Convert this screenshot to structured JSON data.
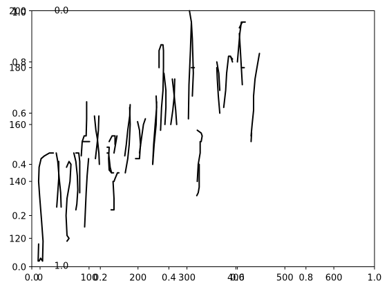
{
  "chart_data": [
    {
      "type": "line",
      "title": "",
      "xlabel": "",
      "ylabel": "",
      "xlim": [
        0,
        1
      ],
      "ylim": [
        0,
        1
      ],
      "x_ticks": [
        "0.0",
        "0.2",
        "0.4",
        "0.6",
        "0.8",
        "1.0"
      ],
      "y_ticks": [
        "0.0",
        "0.2",
        "0.4",
        "0.6",
        "0.8",
        "1.0"
      ],
      "top_tick_labels": [
        "0.0",
        "1.0"
      ],
      "grid": false,
      "legend": "none"
    },
    {
      "type": "line",
      "title": "",
      "xlabel": "",
      "ylabel": "",
      "x_range": [
        0,
        700
      ],
      "ylim": [
        110,
        200
      ],
      "x_ticks": [
        "0",
        "100",
        "200",
        "300",
        "400",
        "500",
        "600"
      ],
      "y_ticks": [
        "120",
        "140",
        "160",
        "180",
        "200"
      ],
      "grid": false,
      "legend": "none",
      "series": [
        {
          "color": "#000000",
          "description_free_strokes": true,
          "strokes": [
            [
              [
                15,
                112
              ],
              [
                18,
                113
              ],
              [
                22,
                112
              ],
              [
                23,
                119
              ],
              [
                20,
                126
              ],
              [
                16,
                135
              ],
              [
                14,
                140
              ],
              [
                15,
                145
              ],
              [
                19,
                148
              ],
              [
                26,
                149
              ],
              [
                36,
                150
              ],
              [
                44,
                150
              ]
            ],
            [
              [
                13,
                112
              ],
              [
                14,
                118
              ]
            ],
            [
              [
                50,
                150
              ],
              [
                53,
                147
              ],
              [
                56,
                141
              ],
              [
                59,
                136
              ],
              [
                60,
                131
              ]
            ],
            [
              [
                55,
                147
              ],
              [
                55,
                141
              ],
              [
                53,
                136
              ],
              [
                51,
                131
              ]
            ],
            [
              [
                71,
                145
              ],
              [
                76,
                147
              ],
              [
                80,
                146
              ],
              [
                78,
                140
              ],
              [
                72,
                134
              ],
              [
                70,
                128
              ],
              [
                72,
                121
              ],
              [
                76,
                120
              ],
              [
                72,
                119
              ]
            ],
            [
              [
                86,
                150
              ],
              [
                90,
                147
              ],
              [
                93,
                142
              ],
              [
                94,
                137
              ],
              [
                92,
                132
              ],
              [
                90,
                130
              ]
            ],
            [
              [
                90,
                150
              ],
              [
                96,
                150
              ],
              [
                98,
                147
              ],
              [
                98,
                136
              ]
            ],
            [
              [
                101,
                149
              ],
              [
                103,
                154
              ],
              [
                107,
                156
              ],
              [
                111,
                156
              ],
              [
                112,
                162
              ],
              [
                112,
                168
              ]
            ],
            [
              [
                105,
                154
              ],
              [
                110,
                154
              ],
              [
                113,
                154
              ],
              [
                118,
                154
              ]
            ],
            [
              [
                116,
                148
              ],
              [
                113,
                142
              ],
              [
                111,
                136
              ],
              [
                108,
                124
              ]
            ],
            [
              [
                128,
                163
              ],
              [
                131,
                158
              ],
              [
                134,
                155
              ],
              [
                137,
                150
              ],
              [
                138,
                146
              ]
            ],
            [
              [
                137,
                163
              ],
              [
                136,
                158
              ],
              [
                134,
                154
              ],
              [
                130,
                148
              ]
            ],
            [
              [
                154,
                152
              ],
              [
                158,
                152
              ],
              [
                157,
                148
              ],
              [
                158,
                144
              ],
              [
                163,
                143
              ],
              [
                167,
                143
              ]
            ],
            [
              [
                154,
                150
              ],
              [
                157,
                150
              ],
              [
                160,
                145
              ],
              [
                163,
                143
              ]
            ],
            [
              [
                158,
                154
              ],
              [
                164,
                156
              ],
              [
                170,
                156
              ],
              [
                170,
                153
              ]
            ],
            [
              [
                168,
                150
              ],
              [
                174,
                156
              ]
            ],
            [
              [
                166,
                140
              ],
              [
                168,
                134
              ],
              [
                168,
                130
              ],
              [
                162,
                130
              ]
            ],
            [
              [
                168,
                140
              ],
              [
                170,
                141
              ],
              [
                175,
                143
              ],
              [
                178,
                143
              ]
            ],
            [
              [
                190,
                149
              ],
              [
                193,
                153
              ],
              [
                196,
                158
              ],
              [
                200,
                163
              ],
              [
                201,
                167
              ]
            ],
            [
              [
                200,
                166
              ],
              [
                201,
                160
              ],
              [
                199,
                153
              ],
              [
                196,
                148
              ],
              [
                191,
                143
              ]
            ],
            [
              [
                212,
                148
              ],
              [
                220,
                148
              ],
              [
                222,
                153
              ],
              [
                220,
                158
              ],
              [
                216,
                161
              ]
            ],
            [
              [
                220,
                150
              ],
              [
                224,
                155
              ],
              [
                228,
                160
              ],
              [
                232,
                162
              ]
            ],
            [
              [
                247,
                146
              ],
              [
                249,
                153
              ],
              [
                252,
                160
              ],
              [
                255,
                166
              ],
              [
                254,
                170
              ]
            ],
            [
              [
                255,
                168
              ],
              [
                254,
                160
              ],
              [
                250,
                153
              ],
              [
                247,
                146
              ]
            ],
            [
              [
                263,
                158
              ],
              [
                265,
                166
              ],
              [
                268,
                172
              ],
              [
                269,
                180
              ],
              [
                269,
                186
              ],
              [
                268,
                188
              ],
              [
                264,
                188
              ]
            ],
            [
              [
                260,
                180
              ],
              [
                260,
                186
              ],
              [
                264,
                188
              ]
            ],
            [
              [
                272,
                160
              ],
              [
                274,
                166
              ],
              [
                274,
                172
              ],
              [
                270,
                178
              ]
            ],
            [
              [
                292,
                176
              ],
              [
                291,
                170
              ],
              [
                288,
                165
              ],
              [
                284,
                160
              ]
            ],
            [
              [
                287,
                176
              ],
              [
                291,
                170
              ],
              [
                294,
                165
              ],
              [
                296,
                160
              ]
            ],
            [
              [
                322,
                200
              ],
              [
                326,
                196
              ],
              [
                328,
                190
              ],
              [
                330,
                178
              ],
              [
                328,
                170
              ]
            ],
            [
              [
                326,
                196
              ],
              [
                324,
                186
              ],
              [
                321,
                174
              ],
              [
                320,
                162
              ]
            ],
            [
              [
                326,
                180
              ],
              [
                332,
                180
              ]
            ],
            [
              [
                342,
                146
              ],
              [
                342,
                138
              ],
              [
                340,
                136
              ],
              [
                337,
                135
              ]
            ],
            [
              [
                344,
                154
              ],
              [
                344,
                150
              ],
              [
                340,
                146
              ],
              [
                338,
                140
              ]
            ],
            [
              [
                338,
                158
              ],
              [
                346,
                157
              ],
              [
                348,
                156
              ],
              [
                346,
                154
              ]
            ],
            [
              [
                378,
                180
              ],
              [
                379,
                176
              ],
              [
                381,
                170
              ],
              [
                384,
                164
              ]
            ],
            [
              [
                378,
                182
              ],
              [
                382,
                178
              ],
              [
                384,
                172
              ]
            ],
            [
              [
                392,
                166
              ],
              [
                396,
                172
              ],
              [
                398,
                178
              ],
              [
                402,
                184
              ],
              [
                405,
                184
              ],
              [
                410,
                183
              ]
            ],
            [
              [
                406,
                184
              ],
              [
                410,
                182
              ]
            ],
            [
              [
                420,
                182
              ],
              [
                422,
                186
              ],
              [
                425,
                192
              ],
              [
                428,
                196
              ]
            ],
            [
              [
                424,
                192
              ],
              [
                426,
                186
              ],
              [
                428,
                180
              ],
              [
                430,
                174
              ]
            ],
            [
              [
                424,
                194
              ],
              [
                430,
                196
              ],
              [
                436,
                196
              ]
            ],
            [
              [
                428,
                180
              ],
              [
                434,
                180
              ]
            ],
            [
              [
                448,
                156
              ],
              [
                450,
                160
              ],
              [
                453,
                165
              ],
              [
                453,
                170
              ],
              [
                456,
                176
              ],
              [
                460,
                180
              ],
              [
                465,
                185
              ]
            ],
            [
              [
                448,
                154
              ],
              [
                449,
                157
              ]
            ]
          ]
        }
      ]
    }
  ]
}
